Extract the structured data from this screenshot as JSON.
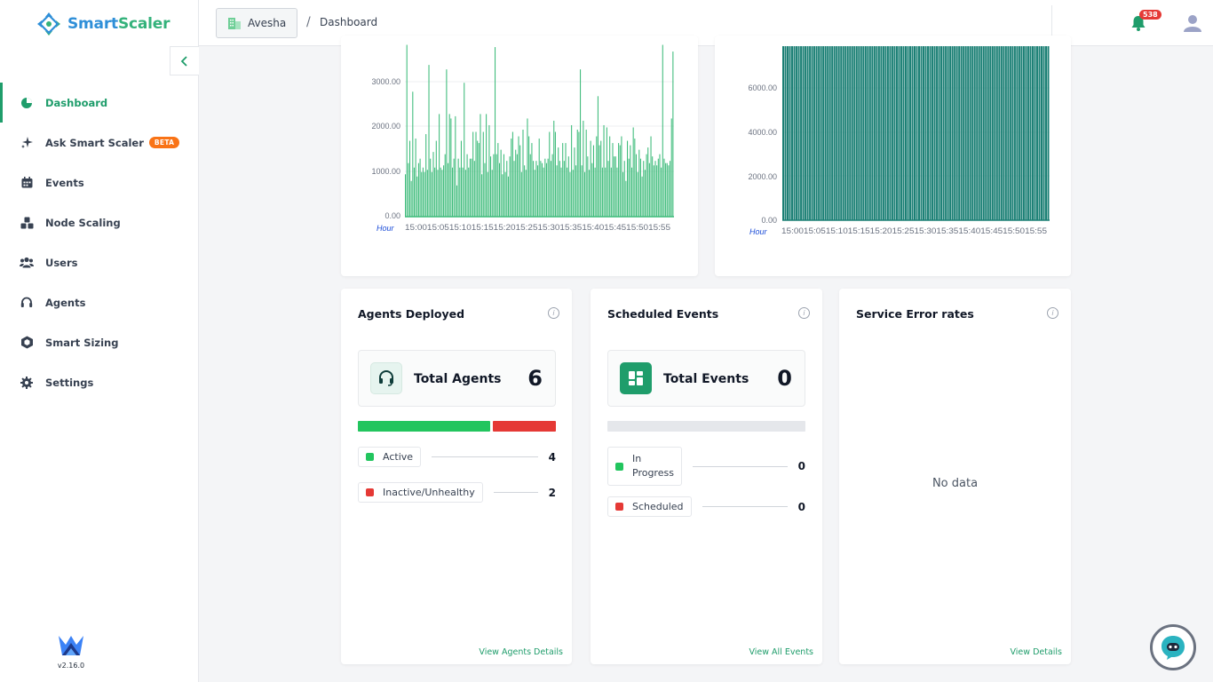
{
  "app": {
    "logo_part1": "Smart",
    "logo_part2": "Scaler",
    "version": "v2.16.0"
  },
  "sidebar": {
    "items": [
      {
        "label": "Dashboard",
        "icon": "pie-chart-icon",
        "active": true
      },
      {
        "label": "Ask Smart Scaler",
        "icon": "sparkle-icon",
        "badge": "BETA"
      },
      {
        "label": "Events",
        "icon": "calendar-icon"
      },
      {
        "label": "Node Scaling",
        "icon": "cubes-icon"
      },
      {
        "label": "Users",
        "icon": "users-icon"
      },
      {
        "label": "Agents",
        "icon": "headset-icon"
      },
      {
        "label": "Smart Sizing",
        "icon": "sizing-icon"
      },
      {
        "label": "Settings",
        "icon": "gear-icon"
      }
    ]
  },
  "header": {
    "org": "Avesha",
    "separator": "/",
    "breadcrumb": "Dashboard",
    "notification_count": "538"
  },
  "charts": {
    "chart1_yticks": [
      "3000.00",
      "2000.00",
      "1000.00",
      "0.00"
    ],
    "chart2_yticks": [
      "6000.00",
      "4000.00",
      "2000.00",
      "0.00"
    ],
    "axis_label": "Hour",
    "xticks": "15:0015:0515:1015:1515:2015:2515:3015:3515:4015:4515:5015:55"
  },
  "chart_data": [
    {
      "type": "bar",
      "title": "",
      "xlabel": "Hour",
      "ylabel": "",
      "ylim": [
        0,
        3900
      ],
      "x_tick_labels": [
        "15:00",
        "15:05",
        "15:10",
        "15:15",
        "15:20",
        "15:25",
        "15:30",
        "15:35",
        "15:40",
        "15:45",
        "15:50",
        "15:55"
      ],
      "values": [
        950,
        3850,
        1200,
        1700,
        800,
        2800,
        1100,
        1750,
        900,
        1200,
        1300,
        1000,
        1100,
        1000,
        1850,
        1050,
        3400,
        1300,
        1000,
        1450,
        1100,
        1700,
        1050,
        2300,
        1100,
        1050,
        1150,
        1400,
        3300,
        1200,
        2300,
        2200,
        1100,
        1300,
        2250,
        700,
        1300,
        1100,
        1700,
        1100,
        3000,
        1050,
        1400,
        1100,
        1300,
        1300,
        1900,
        1250,
        1900,
        1700,
        1650,
        2300,
        950,
        1900,
        1200,
        2300,
        1000,
        2050,
        1350,
        1050,
        1400,
        3800,
        1400,
        1650,
        1200,
        1500,
        950,
        1400,
        1000,
        1250,
        900,
        1350,
        1750,
        1900,
        1250,
        1500,
        1400,
        1800,
        1600,
        1000,
        1950,
        1150,
        1050,
        2200,
        1800,
        1400,
        1650,
        1250,
        1050,
        1250,
        1150,
        1750,
        1250,
        1200,
        1100,
        1300,
        1200,
        1300,
        1900,
        1250,
        1400,
        2150,
        1900,
        1150,
        1550,
        1250,
        1100,
        1650,
        1250,
        1650,
        1100,
        1350,
        1000,
        2050,
        1050,
        1550,
        1150,
        1950,
        1900,
        3300,
        1150,
        2150,
        1000,
        1950,
        1350,
        1050,
        1700,
        1200,
        1600,
        1100,
        1800,
        2700,
        1600,
        1700,
        1100,
        2050,
        1100,
        2000,
        1250,
        1800,
        1100,
        1650,
        1350,
        1350,
        1100,
        1650,
        1600,
        1800,
        1000,
        1250,
        800,
        1700,
        1300,
        1600,
        1100,
        2000,
        1750,
        1400,
        1000,
        1500,
        1300,
        900,
        1250,
        1050,
        1400,
        1550,
        1200,
        1800,
        1350,
        1150,
        1250,
        1150,
        1300,
        1400,
        1100,
        3850,
        1300,
        1200,
        1200,
        1150,
        1250,
        2200,
        3700
      ]
    },
    {
      "type": "bar",
      "title": "",
      "xlabel": "Hour",
      "ylabel": "",
      "ylim": [
        0,
        7900
      ],
      "x_tick_labels": [
        "15:00",
        "15:05",
        "15:10",
        "15:15",
        "15:20",
        "15:25",
        "15:30",
        "15:35",
        "15:40",
        "15:45",
        "15:50",
        "15:55"
      ],
      "values": [
        8000,
        8000,
        8000,
        8000,
        8000,
        8000,
        8000,
        8000,
        8000,
        8000,
        8000,
        8000,
        8000,
        8000,
        8000,
        8000,
        8000,
        8000,
        8000,
        8000,
        8000,
        8000,
        8000,
        8000,
        8000,
        8000,
        8000,
        8000,
        8000,
        8000,
        8000,
        8000,
        8000,
        8000,
        8000,
        8000,
        8000,
        8000,
        8000,
        8000,
        8000,
        8000,
        8000,
        8000,
        8000,
        8000,
        8000,
        8000,
        8000,
        8000,
        8000,
        8000,
        8000,
        8000,
        8000,
        8000,
        8000,
        8000,
        8000,
        8000,
        8000,
        8000,
        8000,
        8000,
        8000,
        8000,
        8000,
        8000,
        8000,
        8000,
        8000,
        8000,
        8000,
        8000,
        8000,
        8000,
        8000,
        8000,
        8000,
        8000,
        8000,
        8000,
        8000,
        8000,
        8000,
        8000,
        8000,
        8000,
        8000,
        8000,
        8000,
        8000,
        8000,
        8000,
        8000,
        8000,
        8000,
        8000,
        8000,
        8000,
        8000,
        8000,
        8000,
        8000,
        8000,
        8000,
        8000,
        8000,
        8000,
        8000,
        8000,
        8000,
        8000,
        8000,
        8000,
        8000,
        8000,
        8000,
        8000,
        8000
      ]
    }
  ],
  "agents": {
    "title": "Agents Deployed",
    "total_label": "Total Agents",
    "total_value": "6",
    "active_label": "Active",
    "active_value": "4",
    "inactive_label": "Inactive/Unhealthy",
    "inactive_value": "2",
    "active_fraction": 0.667,
    "link": "View Agents Details"
  },
  "events": {
    "title": "Scheduled Events",
    "total_label": "Total Events",
    "total_value": "0",
    "inprogress_label_1": "In",
    "inprogress_label_2": "Progress",
    "inprogress_value": "0",
    "scheduled_label": "Scheduled",
    "scheduled_value": "0",
    "link": "View All Events"
  },
  "errors": {
    "title": "Service Error rates",
    "empty": "No data",
    "link": "View Details"
  },
  "colors": {
    "accent": "#1f9d6b",
    "bar_green": "#3dbb7a",
    "bar_teal": "#1a7f74",
    "active": "#22c55e",
    "inactive": "#e53935"
  }
}
